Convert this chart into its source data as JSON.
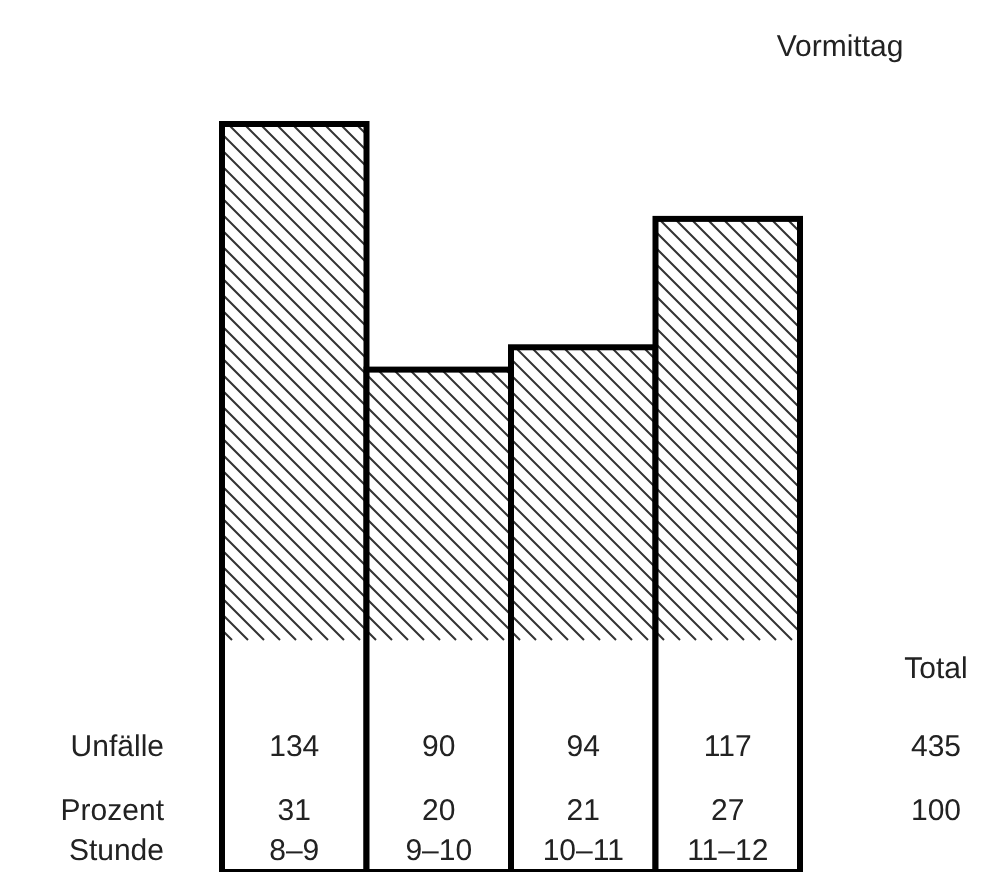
{
  "chart_data": {
    "type": "bar",
    "title": "Vormittag",
    "categories": [
      "8–9",
      "9–10",
      "10–11",
      "11–12"
    ],
    "values": [
      134,
      90,
      94,
      117
    ],
    "color": "#000000",
    "data_labels": true,
    "ylabel": "Unfälle",
    "xlabel": "Stunde",
    "annotations": [
      "Prozent",
      "31",
      "20",
      "21",
      "27",
      "Total",
      "435",
      "100"
    ]
  }
}
